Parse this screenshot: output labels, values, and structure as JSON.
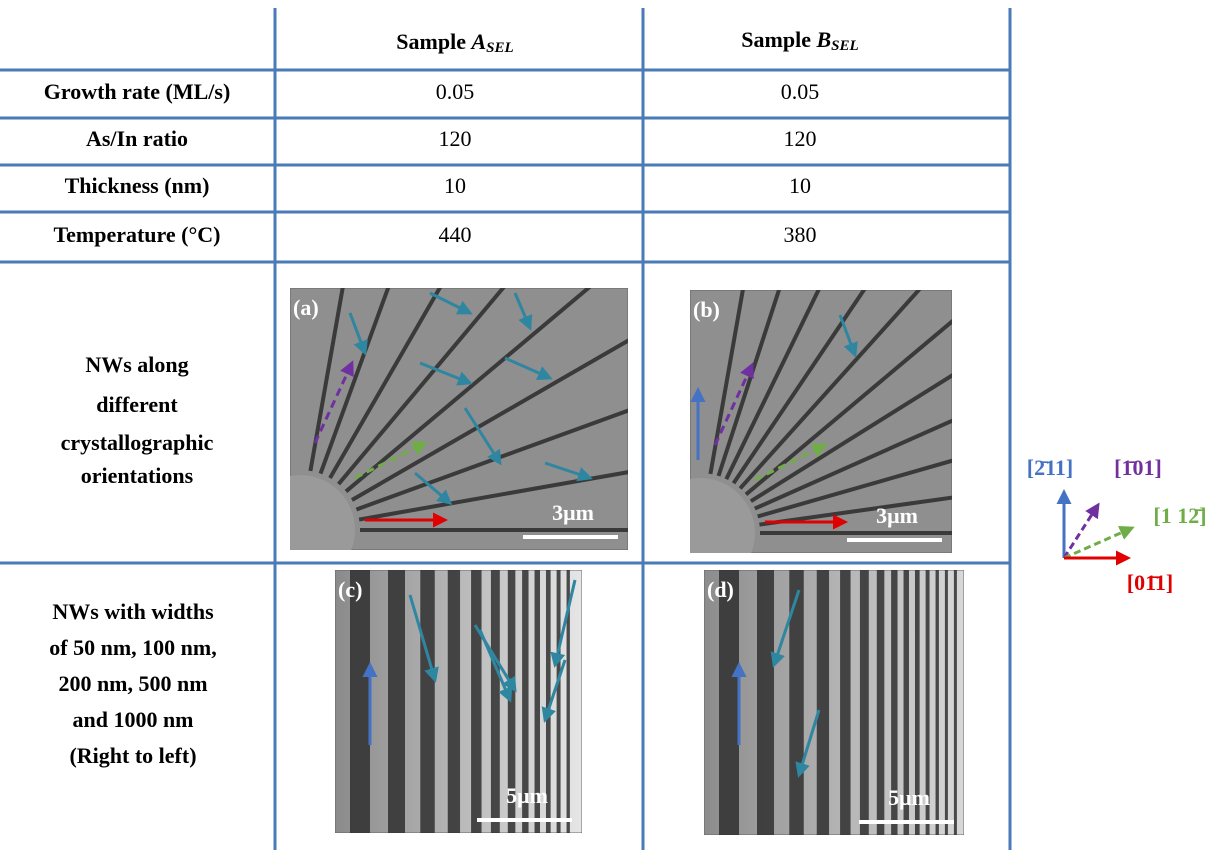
{
  "table": {
    "header": [
      {
        "prefix": "Sample ",
        "symbol": "A",
        "subscript": "SEL"
      },
      {
        "prefix": "Sample ",
        "symbol": "B",
        "subscript": "SEL"
      }
    ],
    "rows": [
      [
        "Growth rate (ML/s)",
        "0.05",
        "0.05"
      ],
      [
        "As/In ratio",
        "120",
        "120"
      ],
      [
        "Thickness (nm)",
        "10",
        "10"
      ],
      [
        "Temperature (°C)",
        "440",
        "380"
      ]
    ]
  },
  "images": {
    "row_labels": [
      [
        "NWs along",
        "different",
        "crystallographic",
        "orientations"
      ],
      [
        "NWs with widths",
        "of 50 nm, 100 nm,",
        "200 nm, 500 nm",
        "and 1000 nm",
        "(Right to left)"
      ]
    ],
    "panels": [
      {
        "label": "(a)",
        "scale": "3μm"
      },
      {
        "label": "(b)",
        "scale": "3μm"
      },
      {
        "label": "(c)",
        "scale": "5μm"
      },
      {
        "label": "(d)",
        "scale": "5μm"
      }
    ]
  },
  "legend": {
    "blue": "[2̄11]",
    "purple": "[1̄01]",
    "green": "[1 12̄]",
    "red": "[01̄1]"
  }
}
